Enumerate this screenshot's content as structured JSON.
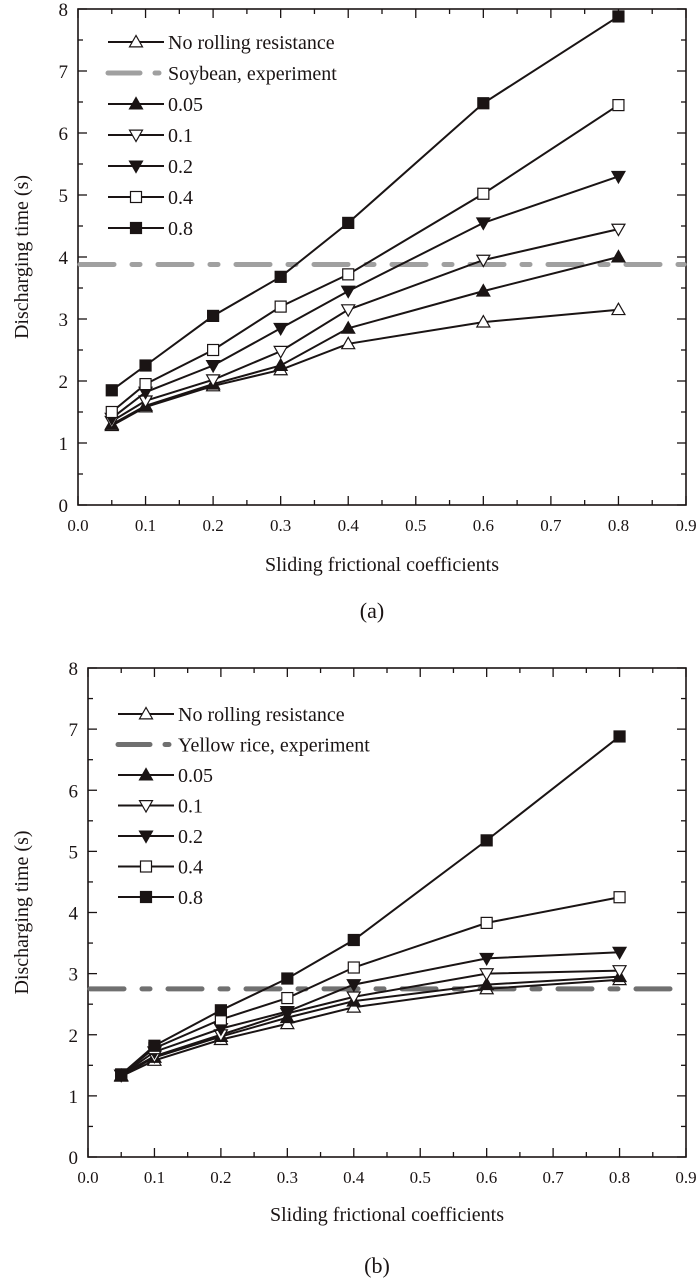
{
  "chart_data": [
    {
      "type": "line",
      "panel_label": "(a)",
      "xlabel": "Sliding frictional coefficients",
      "ylabel": "Discharging time (s)",
      "xlim": [
        0.0,
        0.9
      ],
      "ylim": [
        0,
        8
      ],
      "x_ticks": [
        "0.0",
        "0.1",
        "0.2",
        "0.3",
        "0.4",
        "0.5",
        "0.6",
        "0.7",
        "0.8",
        "0.9"
      ],
      "y_ticks": [
        "0",
        "1",
        "2",
        "3",
        "4",
        "5",
        "6",
        "7",
        "8"
      ],
      "grid": false,
      "legend_position": "top-left",
      "x": [
        0.05,
        0.1,
        0.2,
        0.3,
        0.4,
        0.6,
        0.8
      ],
      "series": [
        {
          "name": "No rolling resistance",
          "marker": "triangle-up-open",
          "values": [
            1.28,
            1.58,
            1.92,
            2.18,
            2.6,
            2.95,
            3.15
          ]
        },
        {
          "name": "0.05",
          "marker": "triangle-up-filled",
          "values": [
            1.3,
            1.6,
            1.95,
            2.25,
            2.85,
            3.45,
            4.0
          ]
        },
        {
          "name": "0.1",
          "marker": "triangle-down-open",
          "values": [
            1.35,
            1.68,
            2.02,
            2.48,
            3.15,
            3.95,
            4.45
          ]
        },
        {
          "name": "0.2",
          "marker": "triangle-down-filled",
          "values": [
            1.4,
            1.82,
            2.25,
            2.85,
            3.45,
            4.55,
            5.3
          ]
        },
        {
          "name": "0.4",
          "marker": "square-open",
          "values": [
            1.5,
            1.95,
            2.5,
            3.2,
            3.72,
            5.02,
            6.45
          ]
        },
        {
          "name": "0.8",
          "marker": "square-filled",
          "values": [
            1.85,
            2.25,
            3.05,
            3.68,
            4.55,
            6.48,
            7.88
          ]
        }
      ],
      "reference_line": {
        "name": "Soybean, experiment",
        "value": 3.88,
        "style": "dash-dot",
        "color": "#a0a0a0"
      },
      "legend_order": [
        "No rolling resistance",
        "Soybean, experiment",
        "0.05",
        "0.1",
        "0.2",
        "0.4",
        "0.8"
      ]
    },
    {
      "type": "line",
      "panel_label": "(b)",
      "xlabel": "Sliding frictional coefficients",
      "ylabel": "Discharging time (s)",
      "xlim": [
        0.0,
        0.9
      ],
      "ylim": [
        0,
        8
      ],
      "x_ticks": [
        "0.0",
        "0.1",
        "0.2",
        "0.3",
        "0.4",
        "0.5",
        "0.6",
        "0.7",
        "0.8",
        "0.9"
      ],
      "y_ticks": [
        "0",
        "1",
        "2",
        "3",
        "4",
        "5",
        "6",
        "7",
        "8"
      ],
      "grid": false,
      "legend_position": "top-left",
      "x": [
        0.05,
        0.1,
        0.2,
        0.3,
        0.4,
        0.6,
        0.8
      ],
      "series": [
        {
          "name": "No rolling resistance",
          "marker": "triangle-up-open",
          "values": [
            1.32,
            1.58,
            1.92,
            2.18,
            2.45,
            2.75,
            2.9
          ]
        },
        {
          "name": "0.05",
          "marker": "triangle-up-filled",
          "values": [
            1.33,
            1.63,
            1.97,
            2.28,
            2.55,
            2.82,
            2.95
          ]
        },
        {
          "name": "0.1",
          "marker": "triangle-down-open",
          "values": [
            1.34,
            1.65,
            2.0,
            2.35,
            2.62,
            3.0,
            3.05
          ]
        },
        {
          "name": "0.2",
          "marker": "triangle-down-filled",
          "values": [
            1.34,
            1.72,
            2.1,
            2.38,
            2.82,
            3.25,
            3.35
          ]
        },
        {
          "name": "0.4",
          "marker": "square-open",
          "values": [
            1.35,
            1.78,
            2.25,
            2.6,
            3.1,
            3.83,
            4.25
          ]
        },
        {
          "name": "0.8",
          "marker": "square-filled",
          "values": [
            1.35,
            1.82,
            2.4,
            2.92,
            3.55,
            5.18,
            6.88
          ]
        }
      ],
      "reference_line": {
        "name": "Yellow rice, experiment",
        "value": 2.75,
        "style": "dash-dot",
        "color": "#707070"
      },
      "legend_order": [
        "No rolling resistance",
        "Yellow rice, experiment",
        "0.05",
        "0.1",
        "0.2",
        "0.4",
        "0.8"
      ]
    }
  ],
  "colors": {
    "ink": "#1a1414",
    "background": "#ffffff"
  }
}
